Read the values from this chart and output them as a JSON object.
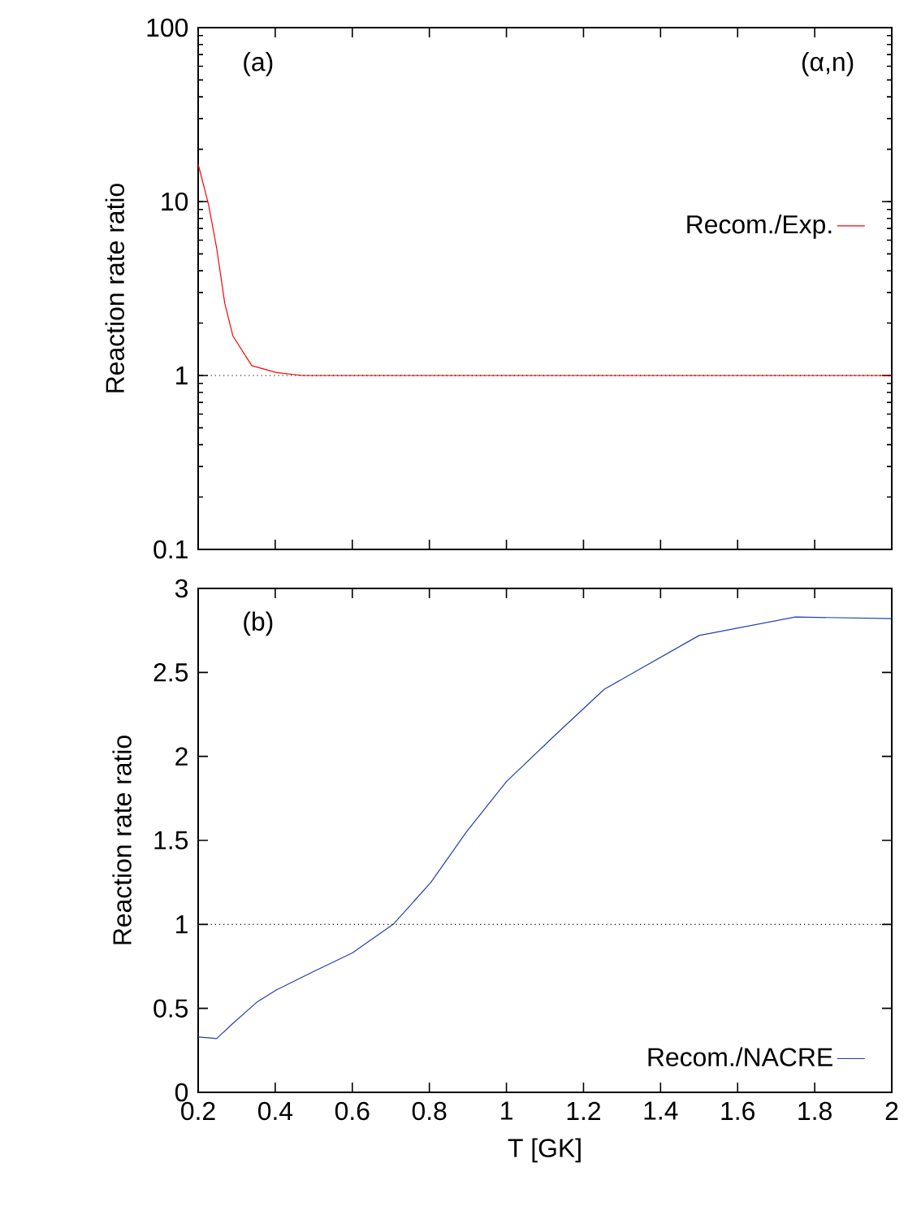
{
  "chart_data": [
    {
      "type": "line",
      "ylabel": "Reaction rate ratio",
      "annotations": [
        "(a)",
        "(α,n)"
      ],
      "log": "y",
      "xlim": [
        0.2,
        2
      ],
      "ylim": [
        0.1,
        100
      ],
      "xticks": [
        0.2,
        0.4,
        0.6,
        0.8,
        1,
        1.2,
        1.4,
        1.6,
        1.8,
        2
      ],
      "yticks": [
        0.1,
        1,
        10,
        100
      ],
      "tick_labels": "y",
      "legend": "right",
      "grid": false,
      "ref_lines": [
        {
          "axis": "y",
          "value": 1,
          "color": "#000000",
          "line_style": "dotted"
        }
      ],
      "series": [
        {
          "name": "Recom./Exp.",
          "color": "#ff0000",
          "x": [
            0.2,
            0.227,
            0.248,
            0.269,
            0.29,
            0.339,
            0.403,
            0.47,
            0.6,
            0.8,
            1.0,
            1.2,
            1.4,
            1.6,
            1.8,
            2.0
          ],
          "values": [
            16.4,
            9.6,
            5.4,
            2.6,
            1.69,
            1.14,
            1.04,
            1.0,
            1.0,
            1.0,
            1.0,
            1.0,
            1.0,
            1.0,
            1.0,
            1.0
          ]
        }
      ]
    },
    {
      "type": "line",
      "xlabel": "T [GK]",
      "ylabel": "Reaction rate ratio",
      "annotations": [
        "(b)"
      ],
      "xlim": [
        0.2,
        2
      ],
      "ylim": [
        0,
        3
      ],
      "xticks": [
        0.2,
        0.4,
        0.6,
        0.8,
        1,
        1.2,
        1.4,
        1.6,
        1.8,
        2
      ],
      "yticks": [
        0,
        0.5,
        1,
        1.5,
        2,
        2.5,
        3
      ],
      "legend": "bottom right",
      "grid": false,
      "ref_lines": [
        {
          "axis": "y",
          "value": 1,
          "color": "#000000",
          "line_style": "dotted"
        }
      ],
      "series": [
        {
          "name": "Recom./NACRE",
          "color": "#2040b0",
          "x": [
            0.2,
            0.248,
            0.29,
            0.354,
            0.403,
            0.5,
            0.6,
            0.706,
            0.804,
            0.896,
            1.0,
            1.128,
            1.254,
            1.5,
            1.75,
            2.0
          ],
          "values": [
            0.33,
            0.32,
            0.41,
            0.54,
            0.61,
            0.72,
            0.83,
            1.0,
            1.25,
            1.55,
            1.85,
            2.13,
            2.4,
            2.72,
            2.83,
            2.82
          ]
        }
      ]
    }
  ]
}
